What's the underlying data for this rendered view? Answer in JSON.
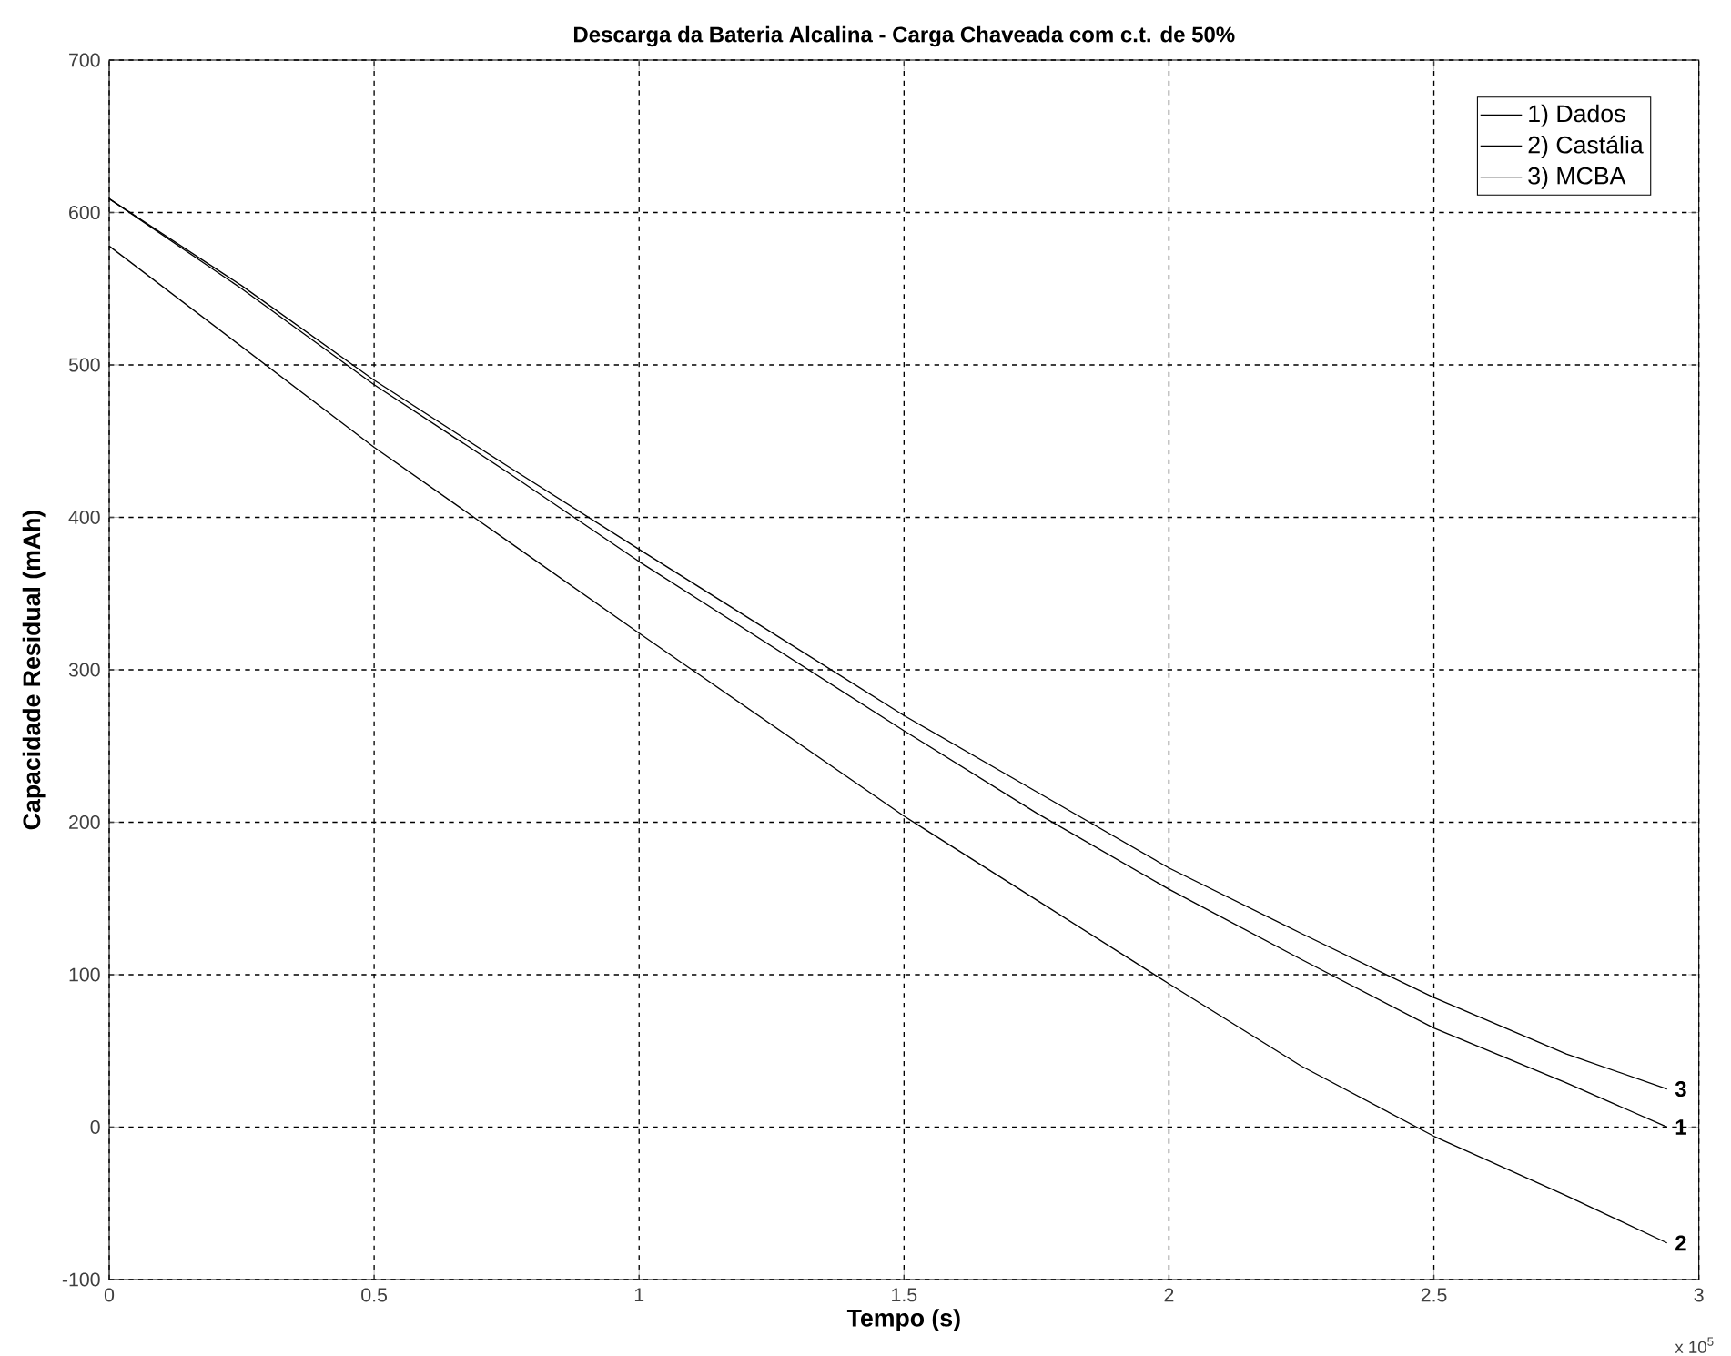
{
  "chart_data": {
    "type": "line",
    "title": "Descarga da Bateria Alcalina - Carga Chaveada com c.t. de 50%",
    "xlabel": "Tempo (s)",
    "ylabel": "Capacidade Residual (mAh)",
    "x": [
      0,
      0.25,
      0.5,
      0.75,
      1,
      1.5,
      1.75,
      2,
      2.25,
      2.5,
      2.75,
      2.94
    ],
    "series": [
      {
        "name": "1) Dados",
        "color": "#000000",
        "values": [
          609,
          550,
          487,
          430,
          371,
          260,
          206,
          156,
          110,
          65,
          29,
          0
        ]
      },
      {
        "name": "2) Castália",
        "color": "#000000",
        "values": [
          578,
          512,
          446,
          385,
          324,
          204,
          149,
          94,
          40,
          -6,
          -45,
          -76
        ]
      },
      {
        "name": "3) MCBA",
        "color": "#000000",
        "values": [
          609,
          552,
          490,
          434,
          379,
          270,
          220,
          170,
          127,
          85,
          48,
          25
        ]
      }
    ],
    "xlim": [
      0,
      3
    ],
    "ylim": [
      -100,
      700
    ],
    "xticks": [
      0,
      0.5,
      1,
      1.5,
      2,
      2.5,
      3
    ],
    "yticks": [
      -100,
      0,
      100,
      200,
      300,
      400,
      500,
      600,
      700
    ],
    "annotations": [
      "1",
      "2",
      "3",
      "x 10$^{5}$"
    ],
    "grid": true,
    "legend": "top right",
    "marker": "none",
    "line_style": "solid"
  }
}
